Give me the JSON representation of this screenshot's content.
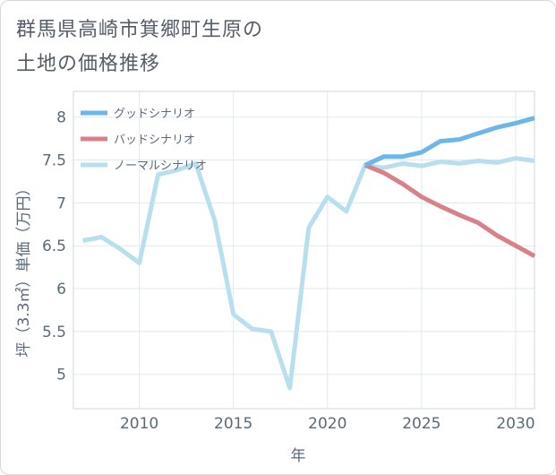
{
  "title_lines": [
    "群馬県高崎市箕郷町生原の",
    "土地の価格推移"
  ],
  "chart_data": {
    "type": "line",
    "xlabel": "年",
    "ylabel": "坪（3.3㎡）単価（万円）",
    "xlim": [
      2006.5,
      2031
    ],
    "ylim": [
      4.6,
      8.3
    ],
    "xticks": [
      2010,
      2015,
      2020,
      2025,
      2030
    ],
    "yticks": [
      5,
      5.5,
      6,
      6.5,
      7,
      7.5,
      8
    ],
    "ytick_labels": [
      "5",
      "5.5",
      "6",
      "6.5",
      "7",
      "7.5",
      "8"
    ],
    "grid": true,
    "legend_position": "top-left",
    "series": [
      {
        "name": "グッドシナリオ",
        "color": "#6cb6ea",
        "x": [
          2022,
          2023,
          2024,
          2025,
          2026,
          2027,
          2028,
          2029,
          2030,
          2031
        ],
        "y": [
          7.44,
          7.54,
          7.54,
          7.59,
          7.72,
          7.74,
          7.81,
          7.88,
          7.93,
          7.99
        ]
      },
      {
        "name": "バッドシナリオ",
        "color": "#d98088",
        "x": [
          2022,
          2023,
          2024,
          2025,
          2026,
          2027,
          2028,
          2029,
          2030,
          2031
        ],
        "y": [
          7.44,
          7.35,
          7.22,
          7.07,
          6.96,
          6.86,
          6.77,
          6.62,
          6.5,
          6.38
        ]
      },
      {
        "name": "ノーマルシナリオ",
        "color": "#b8dfee",
        "x": [
          2007,
          2008,
          2009,
          2010,
          2011,
          2012,
          2013,
          2014,
          2015,
          2016,
          2017,
          2018,
          2019,
          2020,
          2021,
          2022,
          2023,
          2024,
          2025,
          2026,
          2027,
          2028,
          2029,
          2030,
          2031
        ],
        "y": [
          6.56,
          6.6,
          6.46,
          6.3,
          7.33,
          7.38,
          7.46,
          6.8,
          5.7,
          5.53,
          5.5,
          4.84,
          6.71,
          7.07,
          6.9,
          7.44,
          7.41,
          7.46,
          7.43,
          7.48,
          7.46,
          7.49,
          7.47,
          7.52,
          7.49
        ]
      }
    ]
  }
}
